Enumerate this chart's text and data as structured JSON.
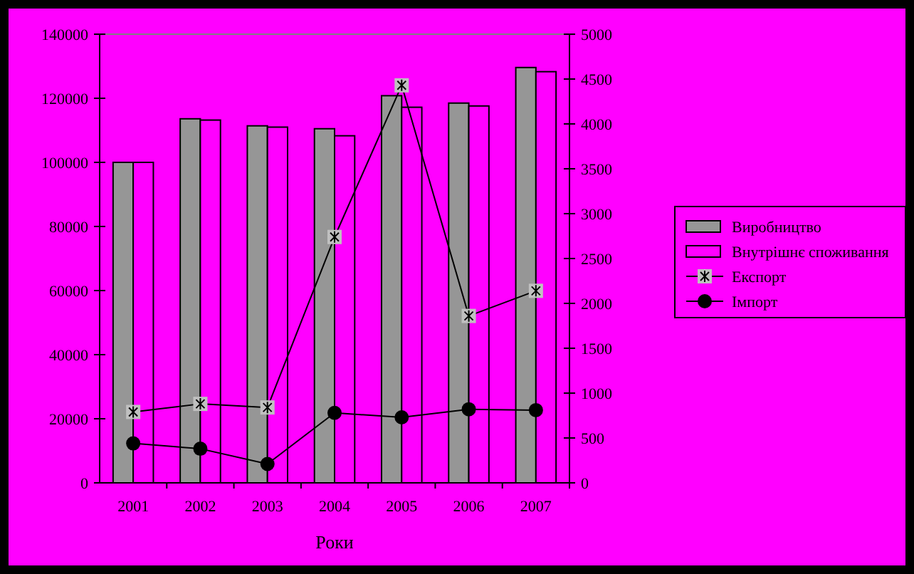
{
  "chart_data": {
    "type": "bar",
    "xlabel": "Роки",
    "categories": [
      "2001",
      "2002",
      "2003",
      "2004",
      "2005",
      "2006",
      "2007"
    ],
    "series": [
      {
        "name": "Виробництво",
        "color": "#969696",
        "values": [
          100000,
          113600,
          111400,
          110500,
          120800,
          118500,
          129600
        ]
      },
      {
        "name": "Внутрішнє споживання",
        "color": "#ff00ff",
        "values": [
          100000,
          113200,
          111000,
          108300,
          117200,
          117600,
          128300
        ]
      },
      {
        "name": "Експорт",
        "type": "line",
        "axis": "y2",
        "marker": "cross",
        "color": "#000000",
        "values": [
          790,
          880,
          840,
          2740,
          4430,
          1860,
          2140
        ]
      },
      {
        "name": "Імпорт",
        "type": "line",
        "axis": "y2",
        "marker": "circle",
        "color": "#000000",
        "values": [
          440,
          380,
          210,
          780,
          730,
          820,
          810
        ]
      }
    ],
    "ylim": [
      0,
      140000
    ],
    "yticks": [
      0,
      20000,
      40000,
      60000,
      80000,
      100000,
      120000,
      140000
    ],
    "y2lim": [
      0,
      5000
    ],
    "y2ticks": [
      0,
      500,
      1000,
      1500,
      2000,
      2500,
      3000,
      3500,
      4000,
      4500,
      5000
    ],
    "grid": false,
    "legend": "right"
  }
}
